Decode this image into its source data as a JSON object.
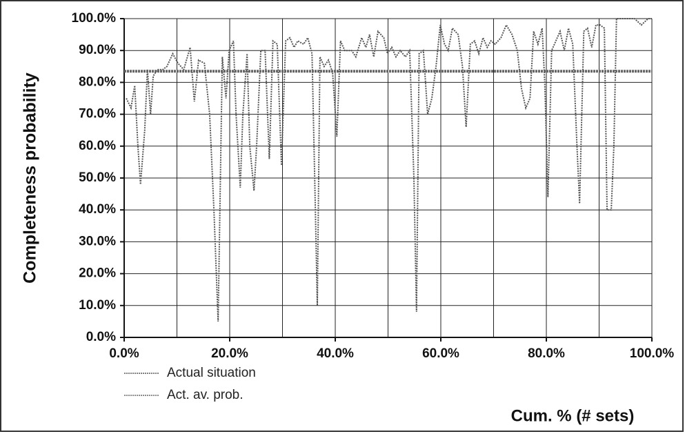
{
  "chart_data": {
    "type": "line",
    "x_label": "Cum. % (# sets)",
    "y_label": "Completeness probability",
    "xlim": [
      0,
      100
    ],
    "ylim": [
      0,
      100
    ],
    "xticks": [
      {
        "value": 0,
        "label": "0.0%"
      },
      {
        "value": 20,
        "label": "20.0%"
      },
      {
        "value": 40,
        "label": "40.0%"
      },
      {
        "value": 60,
        "label": "60.0%"
      },
      {
        "value": 80,
        "label": "80.0%"
      },
      {
        "value": 100,
        "label": "100.0%"
      }
    ],
    "x_gridlines": [
      0,
      10,
      20,
      30,
      40,
      50,
      60,
      70,
      80,
      90,
      100
    ],
    "yticks": [
      {
        "value": 0,
        "label": "0.0%"
      },
      {
        "value": 10,
        "label": "10.0%"
      },
      {
        "value": 20,
        "label": "20.0%"
      },
      {
        "value": 30,
        "label": "30.0%"
      },
      {
        "value": 40,
        "label": "40.0%"
      },
      {
        "value": 50,
        "label": "50.0%"
      },
      {
        "value": 60,
        "label": "60.0%"
      },
      {
        "value": 70,
        "label": "70.0%"
      },
      {
        "value": 80,
        "label": "80.0%"
      },
      {
        "value": 90,
        "label": "90.0%"
      },
      {
        "value": 100,
        "label": "100.0%"
      }
    ],
    "grid": true,
    "legend": "bottom-left",
    "series": [
      {
        "name": "Actual situation",
        "color": "#555555",
        "x": [
          0.4,
          1.3,
          2.0,
          2.6,
          3.1,
          3.9,
          4.4,
          5.0,
          5.5,
          6.3,
          7.3,
          8.1,
          9.2,
          10.2,
          11.3,
          12.5,
          13.3,
          14.1,
          15.2,
          16.2,
          17.0,
          17.8,
          18.6,
          19.3,
          19.9,
          20.7,
          21.2,
          22.0,
          22.5,
          23.3,
          23.8,
          24.6,
          25.1,
          25.9,
          26.7,
          27.5,
          28.2,
          29.0,
          29.8,
          30.6,
          31.4,
          32.2,
          32.9,
          34.0,
          34.8,
          35.6,
          36.1,
          36.6,
          37.1,
          37.9,
          38.7,
          39.5,
          40.3,
          41.0,
          41.8,
          43.1,
          43.9,
          45.0,
          45.8,
          46.5,
          47.3,
          48.1,
          49.2,
          49.9,
          50.7,
          51.5,
          52.3,
          53.3,
          54.1,
          54.9,
          55.4,
          55.9,
          56.7,
          57.5,
          58.3,
          59.1,
          59.9,
          60.7,
          61.4,
          62.2,
          63.3,
          64.1,
          64.8,
          65.6,
          66.4,
          67.2,
          68.0,
          68.8,
          69.5,
          70.3,
          71.4,
          72.4,
          73.5,
          74.5,
          75.3,
          76.1,
          76.9,
          77.6,
          78.4,
          79.2,
          79.7,
          80.3,
          81.0,
          81.8,
          82.6,
          83.4,
          84.2,
          85.0,
          85.8,
          86.3,
          87.1,
          87.8,
          88.6,
          89.4,
          90.2,
          91.0,
          91.5,
          92.3,
          92.8,
          93.3,
          94.1,
          95.4,
          96.7,
          98.0,
          99.3,
          100
        ],
        "values": [
          75,
          72,
          79,
          60,
          48,
          65,
          84,
          70,
          82,
          84,
          84,
          85,
          89,
          86,
          84,
          91,
          74,
          87,
          86,
          70,
          40,
          5,
          88,
          75,
          90,
          93,
          70,
          47,
          70,
          89,
          60,
          46,
          60,
          90,
          90,
          56,
          93,
          92,
          54,
          93,
          94,
          91,
          93,
          92,
          94,
          89,
          50,
          10,
          88,
          85,
          87,
          83,
          63,
          93,
          90,
          90,
          88,
          94,
          91,
          95,
          88,
          96,
          94,
          89,
          91,
          88,
          90,
          88,
          90,
          50,
          8,
          89,
          90,
          70,
          75,
          85,
          98,
          92,
          90,
          97,
          95,
          85,
          66,
          92,
          93,
          89,
          94,
          91,
          93,
          92,
          94,
          98,
          95,
          90,
          78,
          72,
          75,
          96,
          92,
          97,
          80,
          44,
          90,
          93,
          96,
          90,
          97,
          92,
          60,
          42,
          96,
          97,
          91,
          98,
          98,
          97,
          40,
          40,
          60,
          100,
          100,
          100,
          100,
          98,
          100,
          100
        ]
      },
      {
        "name": "Act. av. prob.",
        "color": "#666666",
        "x": [
          0,
          100
        ],
        "values": [
          83.5,
          83.5
        ]
      }
    ]
  }
}
